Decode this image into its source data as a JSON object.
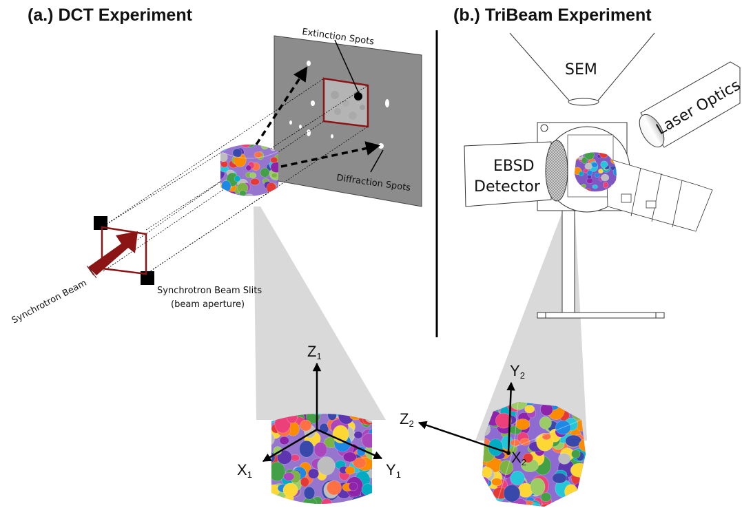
{
  "panel_a": {
    "title": "(a.) DCT Experiment",
    "labels": {
      "extinction_spots": "Extinction Spots",
      "diffraction_spots": "Diffraction Spots",
      "synchrotron_beam": "Synchrotron Beam",
      "slits_line1": "Synchrotron Beam Slits",
      "slits_line2": "(beam aperture)"
    },
    "axes": {
      "z": "Z",
      "z_sub": "1",
      "x": "X",
      "x_sub": "1",
      "y": "Y",
      "y_sub": "1"
    }
  },
  "panel_b": {
    "title": "(b.) TriBeam Experiment",
    "labels": {
      "sem": "SEM",
      "laser_optics": "Laser Optics",
      "ebsd_line1": "EBSD",
      "ebsd_line2": "Detector"
    },
    "axes": {
      "y": "Y",
      "y_sub": "2",
      "z": "Z",
      "z_sub": "2",
      "x": "X",
      "x_sub": "2"
    }
  },
  "colors": {
    "beam_red": "#8b1414",
    "screen_gray": "#8c8c8c",
    "cone_gray": "#d8d8d8",
    "grain_palette": [
      "#e53935",
      "#8e24aa",
      "#5e35b1",
      "#3949ab",
      "#1e88e5",
      "#00acc1",
      "#43a047",
      "#7cb342",
      "#fdd835",
      "#fb8c00",
      "#ec407a",
      "#ab47bc",
      "#26c6da",
      "#9ccc65",
      "#ff7043",
      "#bdbdbd"
    ]
  }
}
